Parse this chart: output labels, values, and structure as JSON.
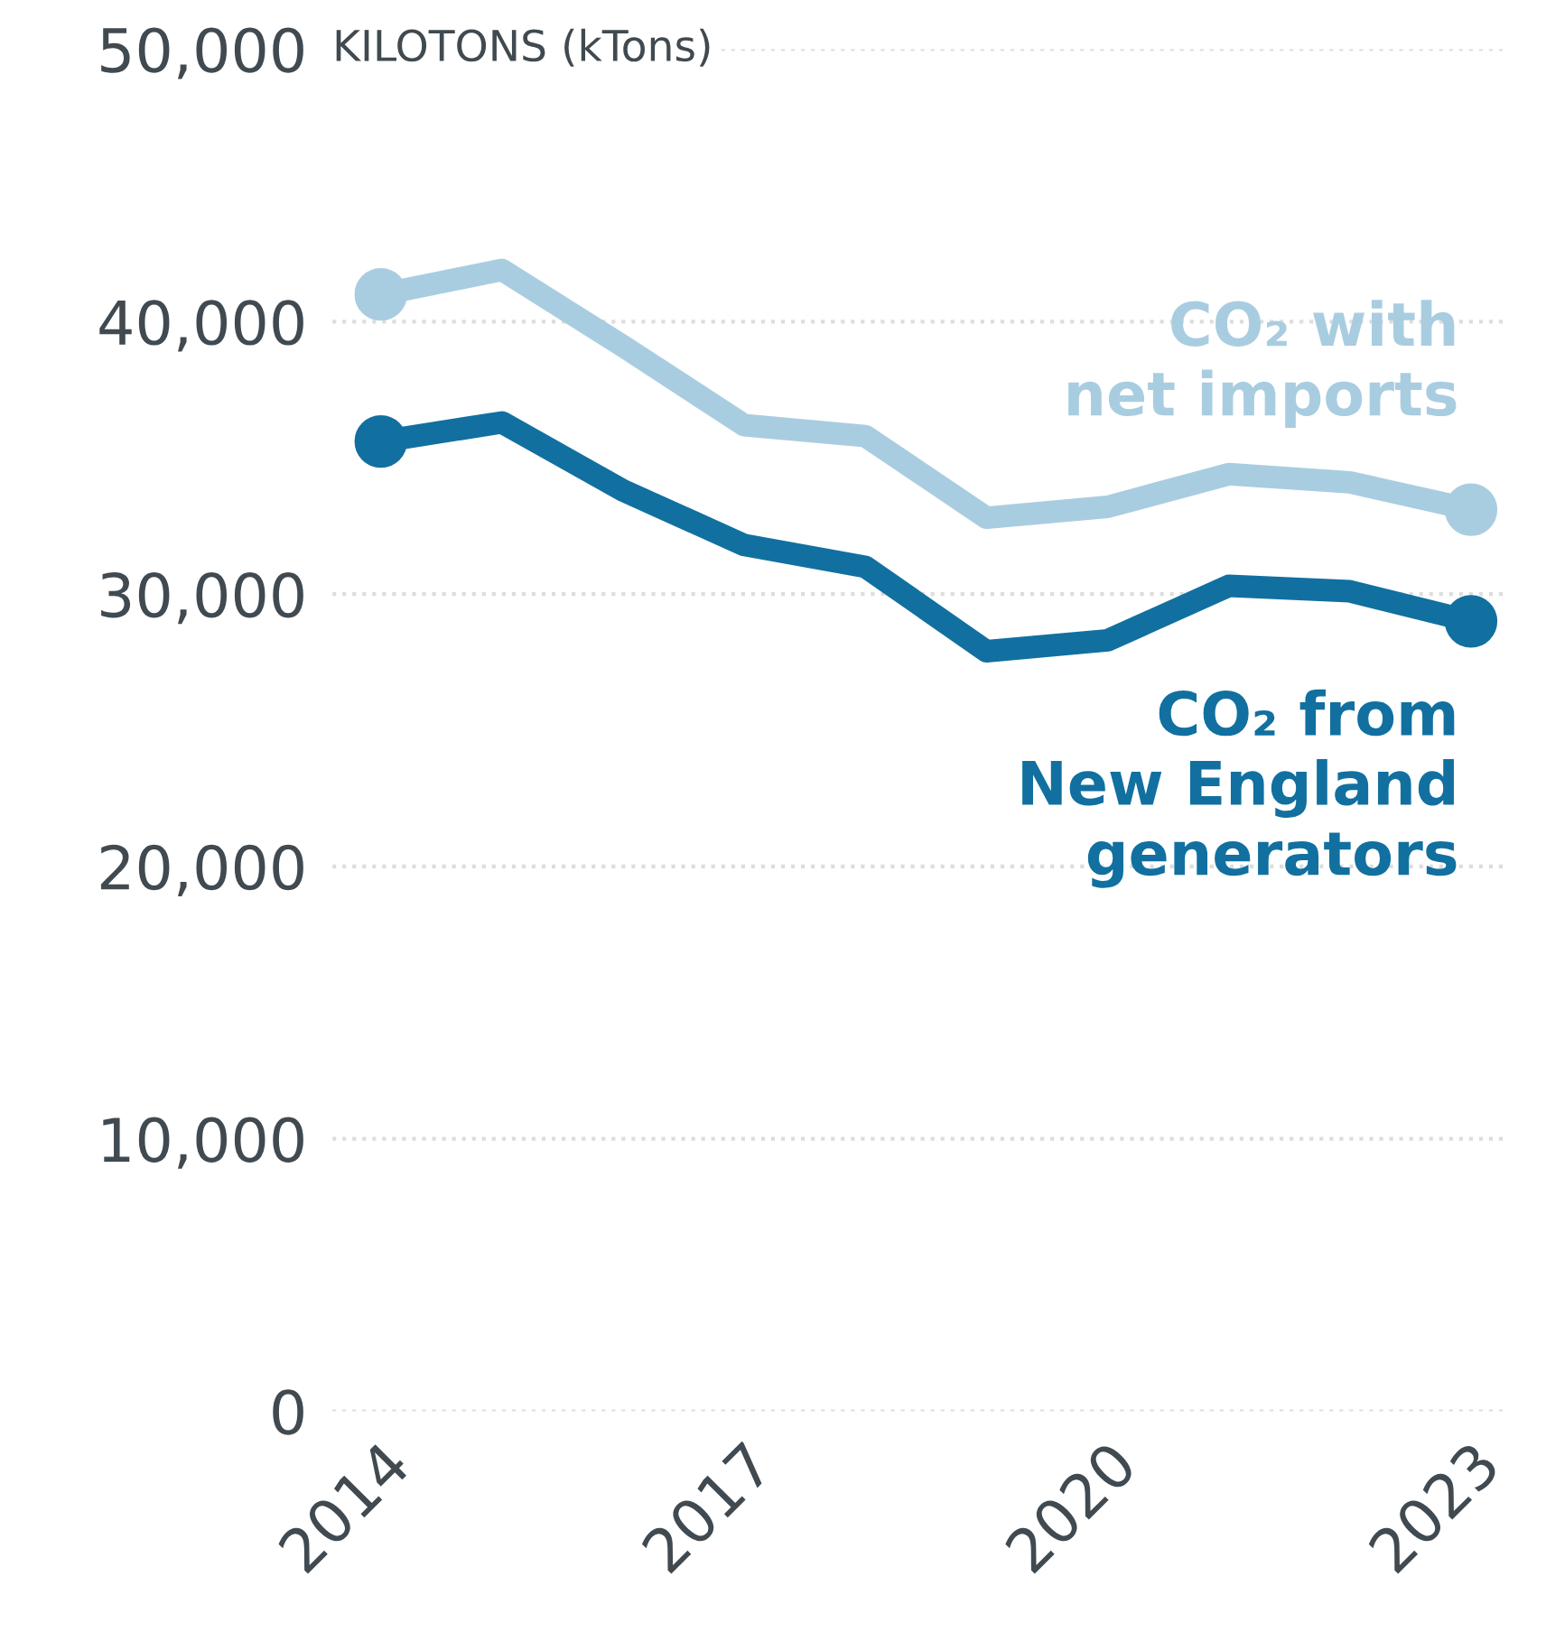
{
  "chart_data": {
    "type": "line",
    "ylabel": "KILOTONS (kTons)",
    "x": [
      2014,
      2015,
      2016,
      2017,
      2018,
      2019,
      2020,
      2021,
      2022,
      2023
    ],
    "series": [
      {
        "name": "CO₂ with net imports",
        "color": "#a9cde0",
        "values": [
          41000,
          41900,
          39100,
          36200,
          35800,
          32800,
          33200,
          34400,
          34100,
          33100
        ]
      },
      {
        "name": "CO₂ from New England generators",
        "color": "#1170a0",
        "values": [
          35600,
          36300,
          33800,
          31800,
          31000,
          27900,
          28300,
          30300,
          30100,
          29000
        ]
      }
    ],
    "xlim": [
      2013.6,
      2023.3
    ],
    "xticks": [
      2014,
      2017,
      2020,
      2023
    ],
    "ylim": [
      0,
      50000
    ],
    "yticks": [
      {
        "value": 0,
        "label": "0"
      },
      {
        "value": 10000,
        "label": "10,000"
      },
      {
        "value": 20000,
        "label": "20,000"
      },
      {
        "value": 30000,
        "label": "30,000"
      },
      {
        "value": 40000,
        "label": "40,000"
      },
      {
        "value": 50000,
        "label": "50,000"
      }
    ],
    "grid": "y",
    "legend": false,
    "line_style": "solid"
  }
}
